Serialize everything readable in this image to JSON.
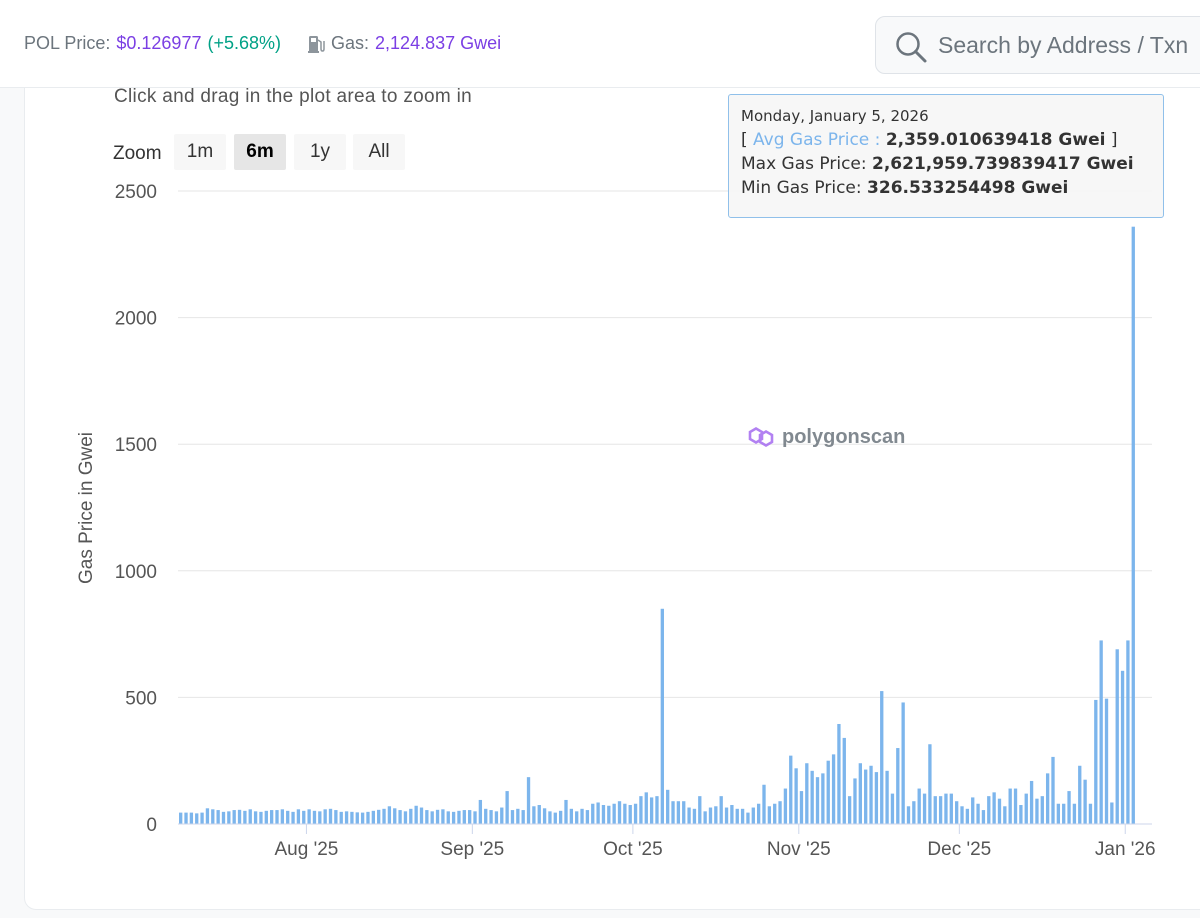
{
  "header": {
    "price_label": "POL Price:",
    "price_value": "$0.126977",
    "price_change": "(+5.68%)",
    "gas_label": "Gas:",
    "gas_value": "2,124.837 Gwei",
    "gas_icon": "gas-pump-icon"
  },
  "search": {
    "placeholder": "Search by Address / Txn",
    "icon": "search-icon"
  },
  "chart_controls": {
    "hint": "Click and drag in the plot area to zoom in",
    "zoom_label": "Zoom",
    "zoom_buttons": [
      "1m",
      "6m",
      "1y",
      "All"
    ],
    "active_zoom": "6m"
  },
  "tooltip": {
    "date": "Monday, January 5, 2026",
    "open_bracket": "[",
    "series_name": "Avg Gas Price",
    "avg_value": "2,359.010639418 Gwei",
    "close_bracket": "]",
    "max_label": "Max Gas Price:",
    "max_value": "2,621,959.739839417 Gwei",
    "min_label": "Min Gas Price:",
    "min_value": "326.533254498 Gwei"
  },
  "watermark": "polygonscan",
  "colors": {
    "bar": "#7cb5ec",
    "accent": "#7b3fe4",
    "positive": "#00a186"
  },
  "chart_data": {
    "type": "bar",
    "ylabel": "Gas Price in Gwei",
    "ylim": [
      0,
      2500
    ],
    "yticks": [
      0,
      500,
      1000,
      1500,
      2000,
      2500
    ],
    "xlim": [
      "2025-07-08",
      "2026-01-06"
    ],
    "xticks": [
      {
        "date": "2025-08-01",
        "label": "Aug '25"
      },
      {
        "date": "2025-09-01",
        "label": "Sep '25"
      },
      {
        "date": "2025-10-01",
        "label": "Oct '25"
      },
      {
        "date": "2025-11-01",
        "label": "Nov '25"
      },
      {
        "date": "2025-12-01",
        "label": "Dec '25"
      },
      {
        "date": "2026-01-01",
        "label": "Jan '26"
      }
    ],
    "grid": true,
    "series": [
      {
        "name": "Avg Gas Price",
        "x_start": "2025-07-08",
        "x_end": "2026-01-05",
        "values": [
          45,
          45,
          45,
          42,
          45,
          62,
          58,
          55,
          48,
          50,
          55,
          56,
          52,
          58,
          50,
          48,
          52,
          55,
          55,
          58,
          52,
          48,
          58,
          52,
          58,
          52,
          50,
          58,
          60,
          55,
          48,
          50,
          48,
          46,
          45,
          48,
          52,
          56,
          60,
          70,
          62,
          55,
          50,
          60,
          72,
          65,
          55,
          50,
          56,
          58,
          50,
          48,
          52,
          55,
          55,
          50,
          95,
          60,
          55,
          50,
          65,
          130,
          55,
          60,
          55,
          185,
          70,
          75,
          62,
          50,
          45,
          52,
          95,
          60,
          50,
          60,
          55,
          80,
          85,
          75,
          72,
          80,
          90,
          80,
          75,
          80,
          110,
          125,
          105,
          110,
          850,
          135,
          90,
          90,
          90,
          65,
          60,
          110,
          50,
          65,
          70,
          110,
          65,
          75,
          60,
          60,
          45,
          65,
          80,
          155,
          70,
          80,
          90,
          140,
          270,
          220,
          130,
          240,
          210,
          185,
          200,
          250,
          275,
          395,
          340,
          110,
          180,
          240,
          215,
          230,
          205,
          525,
          210,
          120,
          300,
          480,
          70,
          90,
          140,
          120,
          315,
          110,
          110,
          120,
          120,
          90,
          70,
          60,
          105,
          80,
          55,
          110,
          125,
          100,
          70,
          140,
          140,
          75,
          120,
          170,
          100,
          110,
          200,
          265,
          80,
          80,
          130,
          80,
          230,
          175,
          80,
          490,
          725,
          495,
          85,
          690,
          605,
          725,
          2359
        ]
      }
    ]
  }
}
